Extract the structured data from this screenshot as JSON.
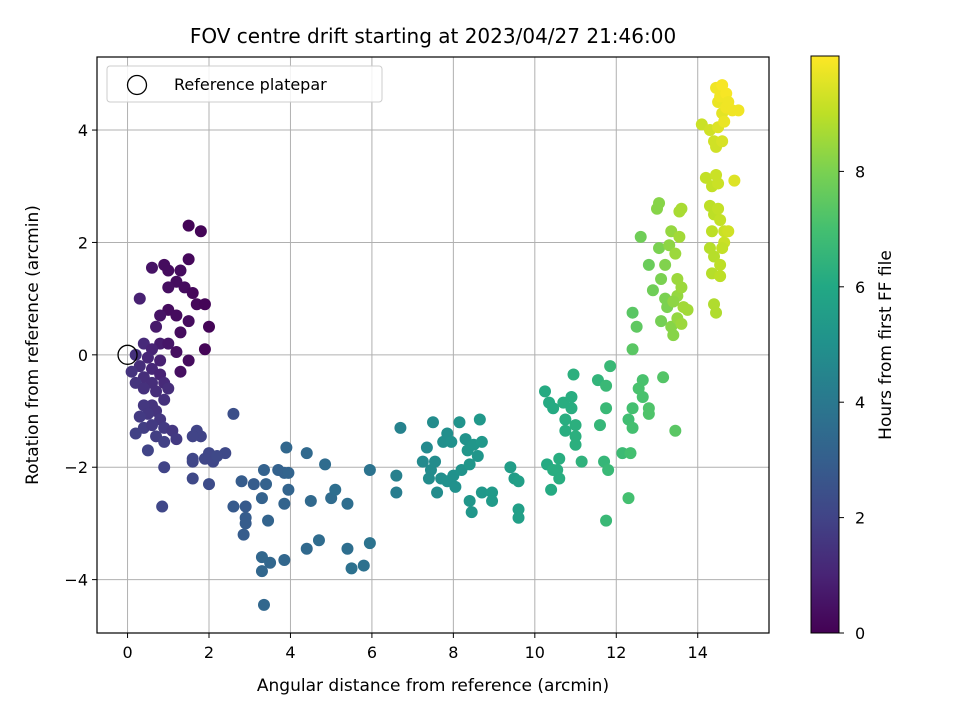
{
  "chart_data": {
    "type": "scatter",
    "title": "FOV centre drift starting at 2023/04/27 21:46:00",
    "xlabel": "Angular distance from reference (arcmin)",
    "ylabel": "Rotation from reference (arcmin)",
    "xlim": [
      -0.75,
      15.75
    ],
    "ylim": [
      -4.95,
      5.3
    ],
    "x_ticks": [
      0,
      2,
      4,
      6,
      8,
      10,
      12,
      14
    ],
    "y_ticks": [
      -4,
      -2,
      0,
      2,
      4
    ],
    "x_tick_labels": [
      "0",
      "2",
      "4",
      "6",
      "8",
      "10",
      "12",
      "14"
    ],
    "y_tick_labels": [
      "−4",
      "−2",
      "0",
      "2",
      "4"
    ],
    "grid": true,
    "legend": {
      "placement": "top-left",
      "entries": [
        {
          "label": "Reference platepar",
          "marker": "open-circle",
          "x": 0,
          "y": 0
        }
      ]
    },
    "colorbar": {
      "label": "Hours from first FF file",
      "colormap": "viridis",
      "range": [
        0,
        10
      ],
      "ticks": [
        0,
        2,
        4,
        6,
        8
      ],
      "tick_labels": [
        "0",
        "2",
        "4",
        "6",
        "8"
      ]
    },
    "points": [
      {
        "x": 1.5,
        "y": 2.3,
        "c": 0.1
      },
      {
        "x": 1.8,
        "y": 2.2,
        "c": 0.1
      },
      {
        "x": 1.5,
        "y": 1.7,
        "c": 0.2
      },
      {
        "x": 1.3,
        "y": 1.5,
        "c": 0.3
      },
      {
        "x": 0.9,
        "y": 1.6,
        "c": 0.3
      },
      {
        "x": 0.6,
        "y": 1.55,
        "c": 0.5
      },
      {
        "x": 1.0,
        "y": 1.5,
        "c": 0.3
      },
      {
        "x": 1.2,
        "y": 1.3,
        "c": 0.3
      },
      {
        "x": 1.4,
        "y": 1.2,
        "c": 0.3
      },
      {
        "x": 1.0,
        "y": 1.2,
        "c": 0.4
      },
      {
        "x": 0.3,
        "y": 1.0,
        "c": 0.9
      },
      {
        "x": 1.6,
        "y": 1.1,
        "c": 0.2
      },
      {
        "x": 1.7,
        "y": 0.9,
        "c": 0.2
      },
      {
        "x": 1.9,
        "y": 0.9,
        "c": 0.1
      },
      {
        "x": 1.0,
        "y": 0.8,
        "c": 0.3
      },
      {
        "x": 1.2,
        "y": 0.7,
        "c": 0.3
      },
      {
        "x": 0.8,
        "y": 0.7,
        "c": 0.5
      },
      {
        "x": 1.5,
        "y": 0.6,
        "c": 0.3
      },
      {
        "x": 2.0,
        "y": 0.5,
        "c": 0.1
      },
      {
        "x": 0.7,
        "y": 0.5,
        "c": 0.7
      },
      {
        "x": 1.3,
        "y": 0.4,
        "c": 0.3
      },
      {
        "x": 0.4,
        "y": 0.2,
        "c": 1.2
      },
      {
        "x": 0.8,
        "y": 0.2,
        "c": 0.8
      },
      {
        "x": 1.0,
        "y": 0.2,
        "c": 0.6
      },
      {
        "x": 0.6,
        "y": 0.1,
        "c": 1.0
      },
      {
        "x": 1.2,
        "y": 0.05,
        "c": 0.4
      },
      {
        "x": 1.9,
        "y": 0.1,
        "c": 0.1
      },
      {
        "x": 0.2,
        "y": 0.0,
        "c": 1.4
      },
      {
        "x": 0.5,
        "y": -0.05,
        "c": 1.1
      },
      {
        "x": 1.5,
        "y": -0.1,
        "c": 0.3
      },
      {
        "x": 0.8,
        "y": -0.1,
        "c": 0.9
      },
      {
        "x": 0.3,
        "y": -0.2,
        "c": 1.3
      },
      {
        "x": 0.6,
        "y": -0.25,
        "c": 1.1
      },
      {
        "x": 1.3,
        "y": -0.3,
        "c": 0.4
      },
      {
        "x": 0.1,
        "y": -0.3,
        "c": 1.5
      },
      {
        "x": 0.4,
        "y": -0.4,
        "c": 1.3
      },
      {
        "x": 0.8,
        "y": -0.35,
        "c": 1.0
      },
      {
        "x": 0.2,
        "y": -0.5,
        "c": 1.5
      },
      {
        "x": 0.6,
        "y": -0.5,
        "c": 1.3
      },
      {
        "x": 0.9,
        "y": -0.5,
        "c": 1.2
      },
      {
        "x": 0.4,
        "y": -0.6,
        "c": 1.4
      },
      {
        "x": 0.7,
        "y": -0.65,
        "c": 1.3
      },
      {
        "x": 1.0,
        "y": -0.6,
        "c": 1.3
      },
      {
        "x": 0.9,
        "y": -0.8,
        "c": 1.4
      },
      {
        "x": 0.6,
        "y": -0.9,
        "c": 1.5
      },
      {
        "x": 0.4,
        "y": -0.9,
        "c": 1.6
      },
      {
        "x": 0.7,
        "y": -1.0,
        "c": 1.5
      },
      {
        "x": 0.5,
        "y": -1.05,
        "c": 1.6
      },
      {
        "x": 0.3,
        "y": -1.1,
        "c": 1.7
      },
      {
        "x": 0.8,
        "y": -1.15,
        "c": 1.6
      },
      {
        "x": 0.4,
        "y": -1.3,
        "c": 1.8
      },
      {
        "x": 0.6,
        "y": -1.25,
        "c": 1.7
      },
      {
        "x": 0.9,
        "y": -1.3,
        "c": 1.7
      },
      {
        "x": 0.2,
        "y": -1.4,
        "c": 1.9
      },
      {
        "x": 1.1,
        "y": -1.35,
        "c": 1.6
      },
      {
        "x": 0.7,
        "y": -1.45,
        "c": 1.8
      },
      {
        "x": 1.2,
        "y": -1.5,
        "c": 1.7
      },
      {
        "x": 1.7,
        "y": -1.35,
        "c": 2.0
      },
      {
        "x": 1.8,
        "y": -1.45,
        "c": 2.0
      },
      {
        "x": 1.6,
        "y": -1.45,
        "c": 2.0
      },
      {
        "x": 0.9,
        "y": -1.55,
        "c": 1.9
      },
      {
        "x": 0.5,
        "y": -1.7,
        "c": 2.0
      },
      {
        "x": 2.0,
        "y": -1.75,
        "c": 2.1
      },
      {
        "x": 2.4,
        "y": -1.75,
        "c": 2.2
      },
      {
        "x": 1.6,
        "y": -1.85,
        "c": 2.1
      },
      {
        "x": 1.9,
        "y": -1.85,
        "c": 2.1
      },
      {
        "x": 1.6,
        "y": -1.9,
        "c": 2.1
      },
      {
        "x": 2.1,
        "y": -1.9,
        "c": 2.1
      },
      {
        "x": 2.2,
        "y": -1.8,
        "c": 2.2
      },
      {
        "x": 0.9,
        "y": -2.0,
        "c": 2.0
      },
      {
        "x": 1.6,
        "y": -2.2,
        "c": 2.2
      },
      {
        "x": 2.0,
        "y": -2.3,
        "c": 2.3
      },
      {
        "x": 0.85,
        "y": -2.7,
        "c": 2.1
      },
      {
        "x": 2.6,
        "y": -1.05,
        "c": 2.4
      },
      {
        "x": 2.8,
        "y": -2.25,
        "c": 2.9
      },
      {
        "x": 3.1,
        "y": -2.3,
        "c": 2.9
      },
      {
        "x": 2.6,
        "y": -2.7,
        "c": 2.8
      },
      {
        "x": 2.9,
        "y": -2.7,
        "c": 2.8
      },
      {
        "x": 2.9,
        "y": -2.9,
        "c": 2.9
      },
      {
        "x": 2.9,
        "y": -3.0,
        "c": 2.9
      },
      {
        "x": 2.85,
        "y": -3.2,
        "c": 2.9
      },
      {
        "x": 3.35,
        "y": -2.05,
        "c": 3.1
      },
      {
        "x": 3.4,
        "y": -2.3,
        "c": 3.1
      },
      {
        "x": 3.3,
        "y": -2.55,
        "c": 3.1
      },
      {
        "x": 3.7,
        "y": -2.05,
        "c": 3.1
      },
      {
        "x": 3.85,
        "y": -2.1,
        "c": 3.1
      },
      {
        "x": 3.95,
        "y": -2.1,
        "c": 3.2
      },
      {
        "x": 3.95,
        "y": -2.4,
        "c": 3.2
      },
      {
        "x": 3.85,
        "y": -2.65,
        "c": 3.2
      },
      {
        "x": 3.45,
        "y": -2.95,
        "c": 3.2
      },
      {
        "x": 3.3,
        "y": -3.6,
        "c": 3.3
      },
      {
        "x": 3.3,
        "y": -3.85,
        "c": 3.3
      },
      {
        "x": 3.5,
        "y": -3.7,
        "c": 3.3
      },
      {
        "x": 3.85,
        "y": -3.65,
        "c": 3.3
      },
      {
        "x": 3.35,
        "y": -4.45,
        "c": 3.3
      },
      {
        "x": 3.9,
        "y": -1.65,
        "c": 3.3
      },
      {
        "x": 4.4,
        "y": -1.75,
        "c": 3.4
      },
      {
        "x": 4.85,
        "y": -1.95,
        "c": 3.5
      },
      {
        "x": 4.5,
        "y": -2.6,
        "c": 3.4
      },
      {
        "x": 5.0,
        "y": -2.55,
        "c": 3.5
      },
      {
        "x": 5.1,
        "y": -2.4,
        "c": 3.6
      },
      {
        "x": 5.4,
        "y": -2.65,
        "c": 3.6
      },
      {
        "x": 4.4,
        "y": -3.45,
        "c": 3.4
      },
      {
        "x": 4.7,
        "y": -3.3,
        "c": 3.5
      },
      {
        "x": 5.4,
        "y": -3.45,
        "c": 3.6
      },
      {
        "x": 5.5,
        "y": -3.8,
        "c": 3.7
      },
      {
        "x": 5.8,
        "y": -3.75,
        "c": 3.7
      },
      {
        "x": 5.95,
        "y": -3.35,
        "c": 3.8
      },
      {
        "x": 5.95,
        "y": -2.05,
        "c": 3.8
      },
      {
        "x": 6.6,
        "y": -2.15,
        "c": 4.3
      },
      {
        "x": 6.6,
        "y": -2.45,
        "c": 4.2
      },
      {
        "x": 6.7,
        "y": -1.3,
        "c": 4.4
      },
      {
        "x": 7.25,
        "y": -1.9,
        "c": 4.7
      },
      {
        "x": 7.35,
        "y": -1.65,
        "c": 4.7
      },
      {
        "x": 7.45,
        "y": -2.05,
        "c": 4.8
      },
      {
        "x": 7.4,
        "y": -2.2,
        "c": 4.8
      },
      {
        "x": 7.55,
        "y": -1.9,
        "c": 4.8
      },
      {
        "x": 7.6,
        "y": -2.45,
        "c": 4.8
      },
      {
        "x": 7.7,
        "y": -2.2,
        "c": 4.9
      },
      {
        "x": 7.75,
        "y": -1.55,
        "c": 4.9
      },
      {
        "x": 7.5,
        "y": -1.2,
        "c": 4.8
      },
      {
        "x": 7.85,
        "y": -1.4,
        "c": 4.9
      },
      {
        "x": 7.95,
        "y": -1.55,
        "c": 5.0
      },
      {
        "x": 7.85,
        "y": -2.25,
        "c": 5.0
      },
      {
        "x": 8.0,
        "y": -2.15,
        "c": 5.0
      },
      {
        "x": 8.05,
        "y": -2.35,
        "c": 5.0
      },
      {
        "x": 8.2,
        "y": -2.05,
        "c": 5.1
      },
      {
        "x": 8.15,
        "y": -1.2,
        "c": 5.1
      },
      {
        "x": 8.3,
        "y": -1.5,
        "c": 5.1
      },
      {
        "x": 8.35,
        "y": -1.7,
        "c": 5.2
      },
      {
        "x": 8.4,
        "y": -1.95,
        "c": 5.2
      },
      {
        "x": 8.5,
        "y": -1.6,
        "c": 5.2
      },
      {
        "x": 8.6,
        "y": -1.8,
        "c": 5.2
      },
      {
        "x": 8.7,
        "y": -1.55,
        "c": 5.3
      },
      {
        "x": 8.65,
        "y": -1.15,
        "c": 5.3
      },
      {
        "x": 8.4,
        "y": -2.6,
        "c": 5.2
      },
      {
        "x": 8.45,
        "y": -2.8,
        "c": 5.2
      },
      {
        "x": 8.7,
        "y": -2.45,
        "c": 5.3
      },
      {
        "x": 8.95,
        "y": -2.45,
        "c": 5.4
      },
      {
        "x": 8.95,
        "y": -2.6,
        "c": 5.4
      },
      {
        "x": 9.4,
        "y": -2.0,
        "c": 5.5
      },
      {
        "x": 9.5,
        "y": -2.2,
        "c": 5.5
      },
      {
        "x": 9.6,
        "y": -2.25,
        "c": 5.6
      },
      {
        "x": 9.6,
        "y": -2.75,
        "c": 5.6
      },
      {
        "x": 9.6,
        "y": -2.9,
        "c": 5.6
      },
      {
        "x": 10.25,
        "y": -0.65,
        "c": 6.1
      },
      {
        "x": 10.35,
        "y": -0.85,
        "c": 6.1
      },
      {
        "x": 10.45,
        "y": -0.95,
        "c": 6.1
      },
      {
        "x": 10.7,
        "y": -0.85,
        "c": 6.2
      },
      {
        "x": 10.9,
        "y": -0.75,
        "c": 6.2
      },
      {
        "x": 10.9,
        "y": -0.95,
        "c": 6.2
      },
      {
        "x": 10.75,
        "y": -1.15,
        "c": 6.2
      },
      {
        "x": 10.75,
        "y": -1.35,
        "c": 6.2
      },
      {
        "x": 11.0,
        "y": -1.25,
        "c": 6.3
      },
      {
        "x": 11.0,
        "y": -1.45,
        "c": 6.3
      },
      {
        "x": 10.95,
        "y": -0.35,
        "c": 6.3
      },
      {
        "x": 10.3,
        "y": -1.95,
        "c": 6.1
      },
      {
        "x": 10.45,
        "y": -2.05,
        "c": 6.2
      },
      {
        "x": 10.55,
        "y": -2.05,
        "c": 6.2
      },
      {
        "x": 10.6,
        "y": -1.85,
        "c": 6.2
      },
      {
        "x": 10.6,
        "y": -2.2,
        "c": 6.2
      },
      {
        "x": 10.4,
        "y": -2.4,
        "c": 6.1
      },
      {
        "x": 11.0,
        "y": -1.6,
        "c": 6.3
      },
      {
        "x": 11.15,
        "y": -1.9,
        "c": 6.4
      },
      {
        "x": 11.55,
        "y": -0.45,
        "c": 6.5
      },
      {
        "x": 11.6,
        "y": -1.25,
        "c": 6.6
      },
      {
        "x": 11.75,
        "y": -0.55,
        "c": 6.7
      },
      {
        "x": 11.75,
        "y": -0.95,
        "c": 6.7
      },
      {
        "x": 11.85,
        "y": -0.2,
        "c": 6.7
      },
      {
        "x": 11.7,
        "y": -1.9,
        "c": 6.6
      },
      {
        "x": 11.8,
        "y": -2.05,
        "c": 6.7
      },
      {
        "x": 11.75,
        "y": -2.95,
        "c": 6.7
      },
      {
        "x": 12.15,
        "y": -1.75,
        "c": 6.8
      },
      {
        "x": 12.3,
        "y": -1.15,
        "c": 6.9
      },
      {
        "x": 12.4,
        "y": -0.95,
        "c": 7.0
      },
      {
        "x": 12.4,
        "y": -1.3,
        "c": 7.0
      },
      {
        "x": 12.35,
        "y": -1.75,
        "c": 7.0
      },
      {
        "x": 12.3,
        "y": -2.55,
        "c": 7.0
      },
      {
        "x": 12.55,
        "y": -0.6,
        "c": 7.1
      },
      {
        "x": 12.65,
        "y": -0.45,
        "c": 7.1
      },
      {
        "x": 12.65,
        "y": -0.75,
        "c": 7.1
      },
      {
        "x": 12.8,
        "y": -0.95,
        "c": 7.2
      },
      {
        "x": 12.8,
        "y": -1.05,
        "c": 7.2
      },
      {
        "x": 13.15,
        "y": -0.4,
        "c": 7.3
      },
      {
        "x": 13.45,
        "y": -1.35,
        "c": 7.4
      },
      {
        "x": 12.4,
        "y": 0.75,
        "c": 7.4
      },
      {
        "x": 12.5,
        "y": 0.5,
        "c": 7.5
      },
      {
        "x": 12.4,
        "y": 0.1,
        "c": 7.4
      },
      {
        "x": 12.6,
        "y": 2.1,
        "c": 7.8
      },
      {
        "x": 12.8,
        "y": 1.6,
        "c": 7.7
      },
      {
        "x": 12.9,
        "y": 1.15,
        "c": 7.8
      },
      {
        "x": 13.05,
        "y": 1.9,
        "c": 8.0
      },
      {
        "x": 13.0,
        "y": 2.6,
        "c": 8.2
      },
      {
        "x": 13.05,
        "y": 2.7,
        "c": 8.2
      },
      {
        "x": 13.1,
        "y": 1.35,
        "c": 8.0
      },
      {
        "x": 13.2,
        "y": 1.6,
        "c": 8.1
      },
      {
        "x": 13.2,
        "y": 1.0,
        "c": 8.0
      },
      {
        "x": 13.25,
        "y": 0.85,
        "c": 8.0
      },
      {
        "x": 13.1,
        "y": 0.6,
        "c": 7.9
      },
      {
        "x": 13.3,
        "y": 1.95,
        "c": 8.3
      },
      {
        "x": 13.35,
        "y": 2.2,
        "c": 8.4
      },
      {
        "x": 13.35,
        "y": 0.5,
        "c": 8.2
      },
      {
        "x": 13.4,
        "y": 0.35,
        "c": 8.2
      },
      {
        "x": 13.45,
        "y": 1.8,
        "c": 8.5
      },
      {
        "x": 13.5,
        "y": 1.35,
        "c": 8.5
      },
      {
        "x": 13.5,
        "y": 1.05,
        "c": 8.4
      },
      {
        "x": 13.5,
        "y": 0.65,
        "c": 8.4
      },
      {
        "x": 13.55,
        "y": 2.1,
        "c": 8.6
      },
      {
        "x": 13.55,
        "y": 2.55,
        "c": 8.7
      },
      {
        "x": 13.6,
        "y": 2.6,
        "c": 8.7
      },
      {
        "x": 13.6,
        "y": 0.55,
        "c": 8.5
      },
      {
        "x": 13.6,
        "y": 1.2,
        "c": 8.5
      },
      {
        "x": 13.65,
        "y": 0.85,
        "c": 8.6
      },
      {
        "x": 13.75,
        "y": 0.8,
        "c": 8.6
      },
      {
        "x": 13.4,
        "y": 0.95,
        "c": 8.3
      },
      {
        "x": 14.1,
        "y": 4.1,
        "c": 9.2
      },
      {
        "x": 14.3,
        "y": 4.0,
        "c": 9.3
      },
      {
        "x": 14.4,
        "y": 3.8,
        "c": 9.3
      },
      {
        "x": 14.2,
        "y": 3.15,
        "c": 9.1
      },
      {
        "x": 14.35,
        "y": 3.0,
        "c": 9.1
      },
      {
        "x": 14.45,
        "y": 3.2,
        "c": 9.2
      },
      {
        "x": 14.5,
        "y": 3.05,
        "c": 9.2
      },
      {
        "x": 14.45,
        "y": 3.7,
        "c": 9.3
      },
      {
        "x": 14.6,
        "y": 3.8,
        "c": 9.4
      },
      {
        "x": 14.5,
        "y": 4.05,
        "c": 9.5
      },
      {
        "x": 14.6,
        "y": 4.3,
        "c": 9.6
      },
      {
        "x": 14.5,
        "y": 4.5,
        "c": 9.7
      },
      {
        "x": 14.45,
        "y": 4.75,
        "c": 9.8
      },
      {
        "x": 14.6,
        "y": 4.8,
        "c": 9.9
      },
      {
        "x": 14.55,
        "y": 4.6,
        "c": 9.8
      },
      {
        "x": 14.7,
        "y": 4.65,
        "c": 9.9
      },
      {
        "x": 14.7,
        "y": 4.4,
        "c": 9.8
      },
      {
        "x": 14.65,
        "y": 4.15,
        "c": 9.7
      },
      {
        "x": 14.75,
        "y": 4.5,
        "c": 9.8
      },
      {
        "x": 14.85,
        "y": 4.35,
        "c": 9.8
      },
      {
        "x": 15.0,
        "y": 4.35,
        "c": 9.8
      },
      {
        "x": 14.9,
        "y": 3.1,
        "c": 9.5
      },
      {
        "x": 14.3,
        "y": 2.65,
        "c": 9.0
      },
      {
        "x": 14.4,
        "y": 2.5,
        "c": 9.0
      },
      {
        "x": 14.5,
        "y": 2.6,
        "c": 9.1
      },
      {
        "x": 14.55,
        "y": 2.4,
        "c": 9.1
      },
      {
        "x": 14.65,
        "y": 2.2,
        "c": 9.2
      },
      {
        "x": 14.65,
        "y": 2.0,
        "c": 9.2
      },
      {
        "x": 14.35,
        "y": 2.2,
        "c": 9.0
      },
      {
        "x": 14.3,
        "y": 1.9,
        "c": 8.9
      },
      {
        "x": 14.4,
        "y": 1.75,
        "c": 8.9
      },
      {
        "x": 14.55,
        "y": 1.6,
        "c": 9.0
      },
      {
        "x": 14.35,
        "y": 1.45,
        "c": 8.9
      },
      {
        "x": 14.55,
        "y": 1.4,
        "c": 9.0
      },
      {
        "x": 14.4,
        "y": 0.9,
        "c": 8.8
      },
      {
        "x": 14.45,
        "y": 0.75,
        "c": 8.8
      },
      {
        "x": 14.75,
        "y": 2.2,
        "c": 9.3
      },
      {
        "x": 14.6,
        "y": 1.9,
        "c": 9.1
      }
    ]
  }
}
